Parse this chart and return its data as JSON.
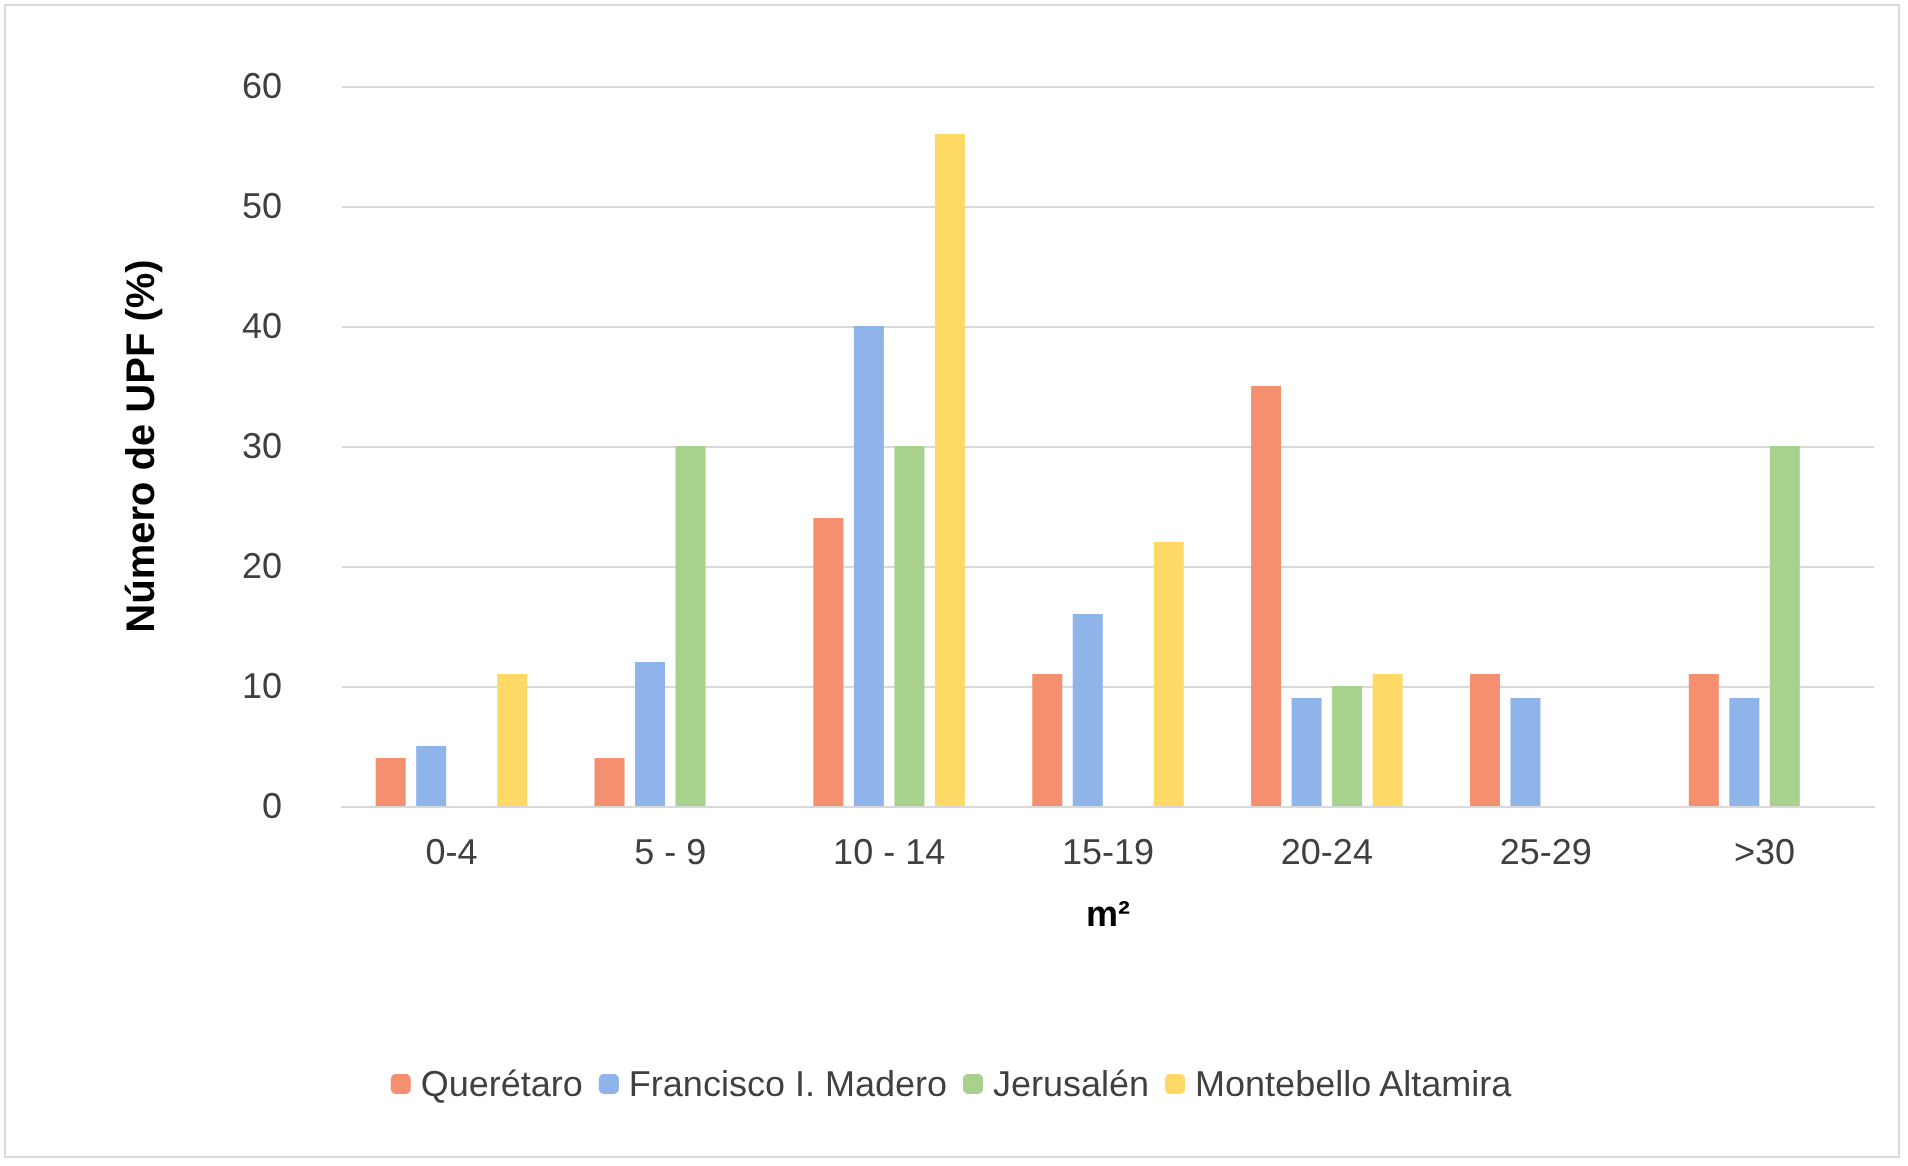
{
  "chart_data": {
    "type": "bar",
    "xlabel": "m²",
    "ylabel": "Número de UPF (%)",
    "categories": [
      "0-4",
      "5 - 9",
      "10 - 14",
      "15-19",
      "20-24",
      "25-29",
      ">30"
    ],
    "series": [
      {
        "name": "Querétaro",
        "color": "#f4906f",
        "values": [
          4,
          4,
          24,
          11,
          35,
          11,
          11
        ]
      },
      {
        "name": "Francisco I. Madero",
        "color": "#8fb4ea",
        "values": [
          5,
          12,
          40,
          16,
          9,
          9,
          9
        ]
      },
      {
        "name": "Jerusalén",
        "color": "#a9d18e",
        "values": [
          null,
          30,
          30,
          null,
          10,
          null,
          30
        ]
      },
      {
        "name": "Montebello Altamira",
        "color": "#ffd966",
        "values": [
          11,
          null,
          56,
          22,
          11,
          null,
          null
        ]
      }
    ],
    "ylim": [
      0,
      60
    ],
    "yticks": [
      0,
      10,
      20,
      30,
      40,
      50,
      60
    ],
    "grid": "y",
    "legend": "bottom"
  }
}
